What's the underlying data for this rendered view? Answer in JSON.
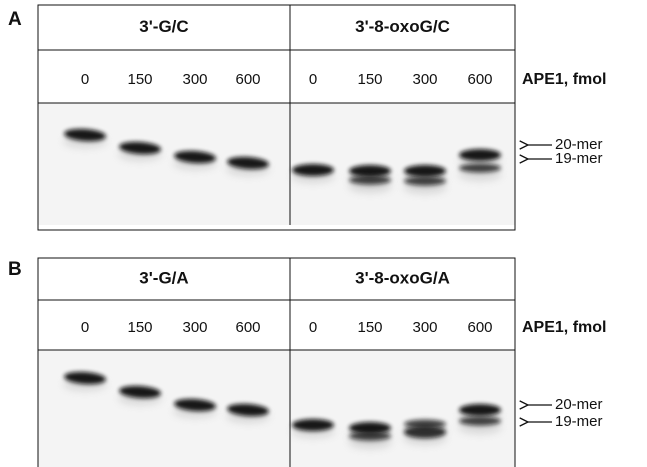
{
  "panels": [
    {
      "label": "A",
      "groups": [
        {
          "title": "3'-G/C",
          "lanes": [
            "0",
            "150",
            "300",
            "600"
          ]
        },
        {
          "title": "3'-8-oxoG/C",
          "lanes": [
            "0",
            "150",
            "300",
            "600"
          ]
        }
      ],
      "axis_label": "APE1, fmol",
      "markers": [
        "20-mer",
        "19-mer"
      ]
    },
    {
      "label": "B",
      "groups": [
        {
          "title": "3'-G/A",
          "lanes": [
            "0",
            "150",
            "300",
            "600"
          ]
        },
        {
          "title": "3'-8-oxoG/A",
          "lanes": [
            "0",
            "150",
            "300",
            "600"
          ]
        }
      ],
      "axis_label": "APE1, fmol",
      "markers": [
        "20-mer",
        "19-mer"
      ]
    }
  ]
}
